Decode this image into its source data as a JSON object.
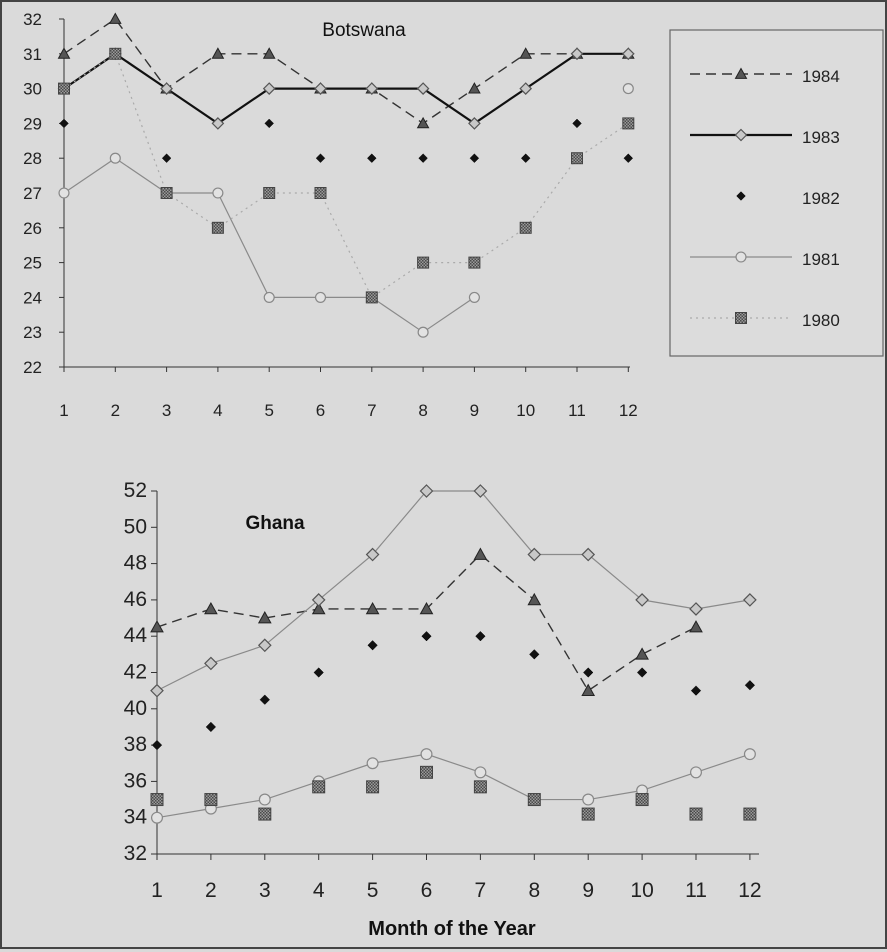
{
  "chart_data": [
    {
      "type": "line",
      "title": "Botswana",
      "categories": [
        "1",
        "2",
        "3",
        "4",
        "5",
        "6",
        "7",
        "8",
        "9",
        "10",
        "11",
        "12"
      ],
      "ylim": [
        22,
        32
      ],
      "yticks": [
        "22",
        "23",
        "24",
        "25",
        "26",
        "27",
        "28",
        "29",
        "30",
        "31",
        "32"
      ],
      "legend_placement": "right",
      "series": [
        {
          "name": "1984",
          "values": [
            31,
            32,
            30,
            31,
            31,
            30,
            30,
            29,
            30,
            31,
            31,
            31
          ],
          "style": "dashed",
          "marker": "triangle",
          "color": "#333333"
        },
        {
          "name": "1983",
          "values": [
            30,
            31,
            30,
            29,
            30,
            30,
            30,
            30,
            29,
            30,
            31,
            31
          ],
          "style": "solid-bold",
          "marker": "diamond-open",
          "color": "#111111"
        },
        {
          "name": "1982",
          "values": [
            29,
            null,
            28,
            null,
            29,
            28,
            28,
            28,
            28,
            28,
            29,
            28
          ],
          "style": "none",
          "marker": "diamond-filled",
          "color": "#111111"
        },
        {
          "name": "1981",
          "values": [
            27,
            28,
            27,
            27,
            24,
            24,
            24,
            23,
            24,
            null,
            null,
            30
          ],
          "style": "solid-light",
          "marker": "circle-open",
          "color": "#8a8a8a"
        },
        {
          "name": "1980",
          "values": [
            30,
            31,
            27,
            26,
            27,
            27,
            24,
            25,
            25,
            26,
            28,
            29
          ],
          "style": "dotted-light",
          "marker": "square-hatched",
          "color": "#aaaaaa"
        }
      ]
    },
    {
      "type": "line",
      "title": "Ghana",
      "categories": [
        "1",
        "2",
        "3",
        "4",
        "5",
        "6",
        "7",
        "8",
        "9",
        "10",
        "11",
        "12"
      ],
      "xlabel": "Month of the Year",
      "ylim": [
        32,
        52
      ],
      "yticks": [
        "32",
        "34",
        "36",
        "38",
        "40",
        "42",
        "44",
        "46",
        "48",
        "50",
        "52"
      ],
      "series": [
        {
          "name": "1984",
          "values": [
            44.5,
            45.5,
            45,
            45.5,
            45.5,
            45.5,
            48.5,
            46,
            41,
            43,
            44.5,
            null
          ],
          "style": "dashed",
          "marker": "triangle",
          "color": "#333333"
        },
        {
          "name": "1983",
          "values": [
            41,
            42.5,
            43.5,
            46,
            48.5,
            52,
            52,
            48.5,
            48.5,
            46,
            45.5,
            46
          ],
          "style": "solid-light",
          "marker": "diamond-open",
          "color": "#8a8a8a"
        },
        {
          "name": "1982",
          "values": [
            38,
            39,
            40.5,
            42,
            43.5,
            44,
            44,
            43,
            42,
            42,
            41,
            41.3
          ],
          "style": "none",
          "marker": "diamond-filled",
          "color": "#111111"
        },
        {
          "name": "1981",
          "values": [
            34,
            34.5,
            35,
            36,
            37,
            37.5,
            36.5,
            35,
            35,
            35.5,
            36.5,
            37.5
          ],
          "style": "solid-light",
          "marker": "circle-open",
          "color": "#8a8a8a"
        },
        {
          "name": "1980",
          "values": [
            35,
            35,
            34.2,
            35.7,
            35.7,
            36.5,
            35.7,
            35,
            34.2,
            35,
            34.2,
            34.2
          ],
          "style": "none",
          "marker": "square-hatched",
          "color": "#aaaaaa"
        }
      ]
    }
  ]
}
